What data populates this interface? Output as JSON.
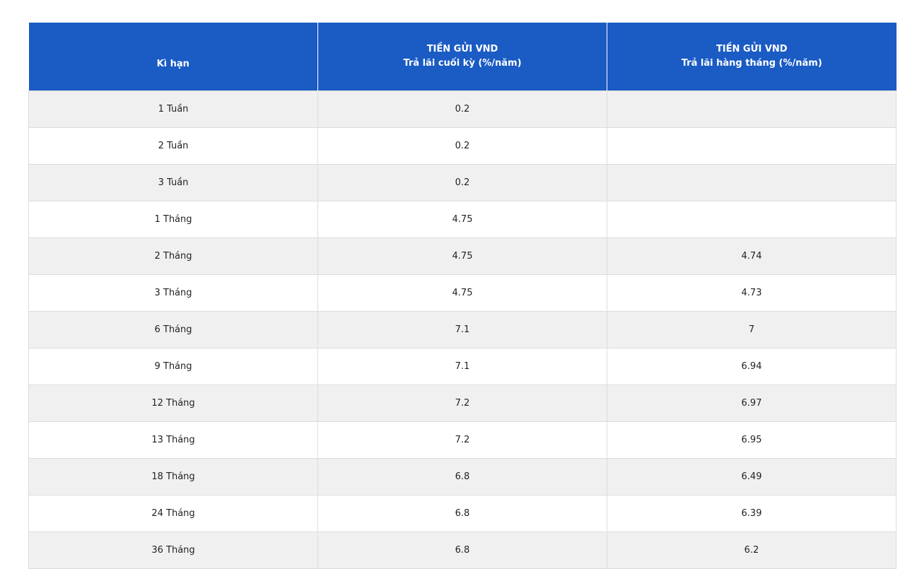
{
  "table": {
    "header": [
      {
        "title": "Kì hạn"
      },
      {
        "title": "TIỀN GỬI VND",
        "subtitle": "Trả lãi cuối kỳ (%/năm)"
      },
      {
        "title": "TIỀN GỬI VND",
        "subtitle": "Trả lãi hàng tháng (%/năm)"
      }
    ],
    "rows": [
      [
        "1 Tuần",
        "0.2",
        null
      ],
      [
        "2 Tuần",
        "0.2",
        null
      ],
      [
        "3 Tuần",
        "0.2",
        null
      ],
      [
        "1 Tháng",
        "4.75",
        null
      ],
      [
        "2 Tháng",
        "4.75",
        "4.74"
      ],
      [
        "3 Tháng",
        "4.75",
        "4.73"
      ],
      [
        "6 Tháng",
        "7.1",
        "7"
      ],
      [
        "9 Tháng",
        "7.1",
        "6.94"
      ],
      [
        "12 Tháng",
        "7.2",
        "6.97"
      ],
      [
        "13 Tháng",
        "7.2",
        "6.95"
      ],
      [
        "18 Tháng",
        "6.8",
        "6.49"
      ],
      [
        "24 Tháng",
        "6.8",
        "6.39"
      ],
      [
        "36 Tháng",
        "6.8",
        "6.2"
      ]
    ]
  }
}
